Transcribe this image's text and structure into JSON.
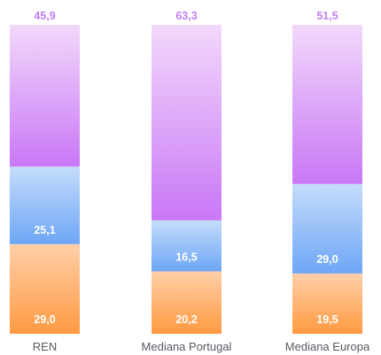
{
  "chart_data": {
    "type": "bar",
    "stacked": true,
    "categories": [
      "REN",
      "Mediana Portugal",
      "Mediana Europa"
    ],
    "series": [
      {
        "values": [
          29.0,
          20.2,
          19.5
        ],
        "labels": [
          "29,0",
          "20,2",
          "19,5"
        ],
        "color_top": "#ffcfa8",
        "color_bottom": "#ff9a42"
      },
      {
        "values": [
          25.1,
          16.5,
          29.0
        ],
        "labels": [
          "25,1",
          "16,5",
          "29,0"
        ],
        "color_top": "#c4dcfb",
        "color_bottom": "#6ea6f6"
      },
      {
        "values": [
          45.9,
          63.3,
          51.5
        ],
        "labels": [
          "45,9",
          "63,3",
          "51,5"
        ],
        "color_top": "#f2d8fb",
        "color_bottom": "#c977f5"
      }
    ],
    "top_label_color": "#c27ef2",
    "ylim": [
      0,
      100
    ],
    "grid": false,
    "legend": "none"
  }
}
